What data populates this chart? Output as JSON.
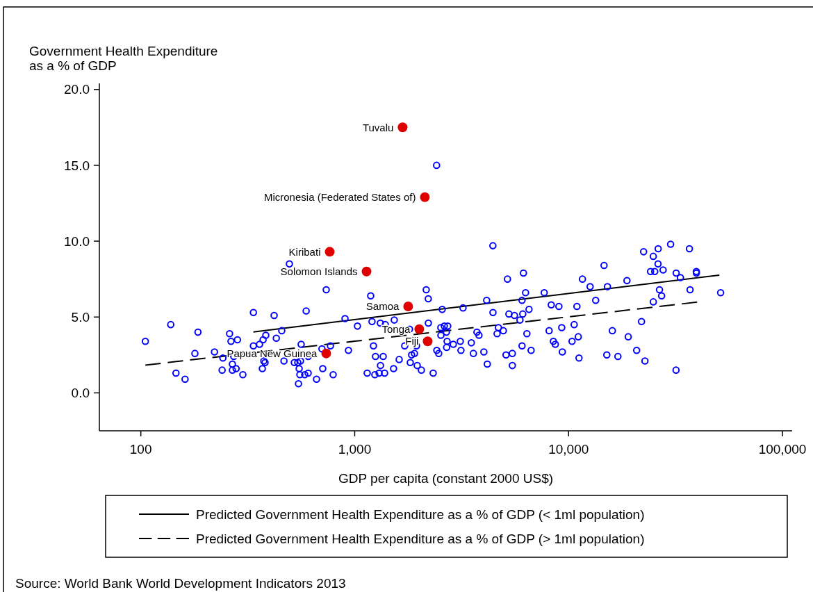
{
  "chart_data": {
    "type": "scatter",
    "xlabel": "GDP per capita (constant 2000 US$)",
    "ylabel": "Government Health Expenditure\nas a % of GDP",
    "log": "x",
    "xlim": [
      64,
      111000
    ],
    "xticks": [
      {
        "value": 100,
        "label": "100"
      },
      {
        "value": 1000,
        "label": "1,000"
      },
      {
        "value": 10000,
        "label": "10,000"
      },
      {
        "value": 100000,
        "label": "100,000"
      }
    ],
    "ylim": [
      -2.5,
      20.4
    ],
    "yticks": [
      {
        "value": 0,
        "label": "0.0"
      },
      {
        "value": 5,
        "label": "5.0"
      },
      {
        "value": 10,
        "label": "10.0"
      },
      {
        "value": 15,
        "label": "15.0"
      },
      {
        "value": 20,
        "label": "20.0"
      }
    ],
    "grid": false,
    "legend": "bottom",
    "marker": "circle",
    "series": [
      {
        "color": "#0000ff",
        "x": [
          495,
          736,
          336,
          420,
          593,
          138,
          185,
          105,
          260,
          264,
          283,
          336,
          359,
          373,
          384,
          430,
          456,
          562,
          703,
          770,
          179,
          221,
          242,
          272,
          268,
          376,
          381,
          467,
          522,
          542,
          558,
          606,
          146,
          161,
          240,
          268,
          279,
          300,
          370,
          550,
          554,
          584,
          606,
          663,
          709,
          793,
          546,
          2415,
          4426,
          5180,
          1188,
          2160,
          2208,
          4140,
          2565,
          3210,
          4430,
          5260,
          901,
          1205,
          1318,
          1390,
          1531,
          1030,
          1804,
          2210,
          2528,
          2624,
          2723,
          2685,
          2530,
          3728,
          3811,
          4632,
          4955,
          4699,
          2704,
          2891,
          3117,
          3510,
          2690,
          3139,
          3590,
          4018,
          2420,
          2471,
          1945,
          1713,
          1224,
          935,
          1251,
          1359,
          1614,
          1846,
          1903,
          1819,
          1960,
          2050,
          1520,
          1320,
          1380,
          1300,
          1242,
          1144,
          2328,
          4169,
          5100,
          5458,
          5460,
          6152,
          6295,
          7692,
          6057,
          5585,
          6107,
          6531,
          5926,
          8299,
          9010,
          10940,
          11610,
          12610,
          13390,
          14650,
          15200,
          18750,
          22430,
          24890,
          26240,
          30000,
          36730,
          26200,
          24170,
          25280,
          27670,
          31850,
          33340,
          39560,
          39600,
          36980,
          26610,
          27230,
          24900,
          51400,
          6383,
          8110,
          9290,
          10620,
          8490,
          8670,
          10380,
          11100,
          6060,
          6680,
          9350,
          11190,
          16020,
          15090,
          17010,
          19010,
          20810,
          21930,
          22750,
          31800
        ],
        "values": [
          8.5,
          6.8,
          5.3,
          5.1,
          5.4,
          4.5,
          4.0,
          3.4,
          3.9,
          3.4,
          3.5,
          3.1,
          3.2,
          3.5,
          3.8,
          3.6,
          4.1,
          3.2,
          2.9,
          3.1,
          2.6,
          2.7,
          2.3,
          2.4,
          1.9,
          2.1,
          2.0,
          2.1,
          2.0,
          2.0,
          2.1,
          2.4,
          1.3,
          0.9,
          1.5,
          1.5,
          1.6,
          1.2,
          1.6,
          1.6,
          1.2,
          1.2,
          1.3,
          0.9,
          1.6,
          1.2,
          0.6,
          15.0,
          9.7,
          7.5,
          6.4,
          6.8,
          6.2,
          6.1,
          5.5,
          5.6,
          5.3,
          5.2,
          4.9,
          4.7,
          4.6,
          4.5,
          4.8,
          4.4,
          4.2,
          4.6,
          4.3,
          4.4,
          4.4,
          4.0,
          3.8,
          4.0,
          3.8,
          3.9,
          4.1,
          4.3,
          3.4,
          3.2,
          3.4,
          3.3,
          3.0,
          2.8,
          2.6,
          2.7,
          2.8,
          2.6,
          3.1,
          3.1,
          3.1,
          2.8,
          2.4,
          2.4,
          2.2,
          2.5,
          2.6,
          2.0,
          1.8,
          1.5,
          1.6,
          1.8,
          1.3,
          1.3,
          1.2,
          1.3,
          1.3,
          1.9,
          2.5,
          2.6,
          1.8,
          7.9,
          6.6,
          6.6,
          6.1,
          5.1,
          5.2,
          5.5,
          4.8,
          5.8,
          5.7,
          5.7,
          7.5,
          7.0,
          6.1,
          8.4,
          7.0,
          7.4,
          9.3,
          9.0,
          9.5,
          9.8,
          9.5,
          8.5,
          8.0,
          8.0,
          8.1,
          7.9,
          7.6,
          8.0,
          7.9,
          6.8,
          6.8,
          6.4,
          6.0,
          6.6,
          3.9,
          4.1,
          4.3,
          4.5,
          3.4,
          3.2,
          3.4,
          3.7,
          3.1,
          2.8,
          2.7,
          2.3,
          4.1,
          2.5,
          2.4,
          3.7,
          2.8,
          4.7,
          2.1,
          1.5
        ]
      },
      {
        "color": "#e00000",
        "x": [
          1675,
          2128,
          764,
          1136,
          1778,
          2004,
          2193,
          736
        ],
        "values": [
          17.5,
          12.9,
          9.3,
          8.0,
          5.7,
          4.2,
          3.4,
          2.6
        ]
      },
      {
        "type": "line",
        "name": "Predicted Government Health Expenditure as a % of GDP (< 1ml population)",
        "color": "#000000",
        "marker": "none",
        "line_style": "solid",
        "x": [
          336,
          50700
        ],
        "values": [
          4.02,
          7.76
        ]
      },
      {
        "type": "line",
        "name": "Predicted Government Health Expenditure as a % of GDP (> 1ml population)",
        "color": "#000000",
        "marker": "none",
        "line_style": "dashed",
        "x": [
          105,
          39900
        ],
        "values": [
          1.83,
          5.98
        ]
      }
    ],
    "annotations": [
      {
        "text": "Tuvalu",
        "x": 1675,
        "y": 17.5
      },
      {
        "text": "Micronesia (Federated States of)",
        "x": 2128,
        "y": 12.9
      },
      {
        "text": "Kiribati",
        "x": 764,
        "y": 9.3
      },
      {
        "text": "Solomon Islands",
        "x": 1136,
        "y": 8.0
      },
      {
        "text": "Samoa",
        "x": 1778,
        "y": 5.7
      },
      {
        "text": "Tonga",
        "x": 2004,
        "y": 4.2
      },
      {
        "text": "Fiji",
        "x": 2193,
        "y": 3.4
      },
      {
        "text": "Papua New Guinea",
        "x": 736,
        "y": 2.6
      },
      "Source: World Bank World Development Indicators 2013"
    ]
  }
}
